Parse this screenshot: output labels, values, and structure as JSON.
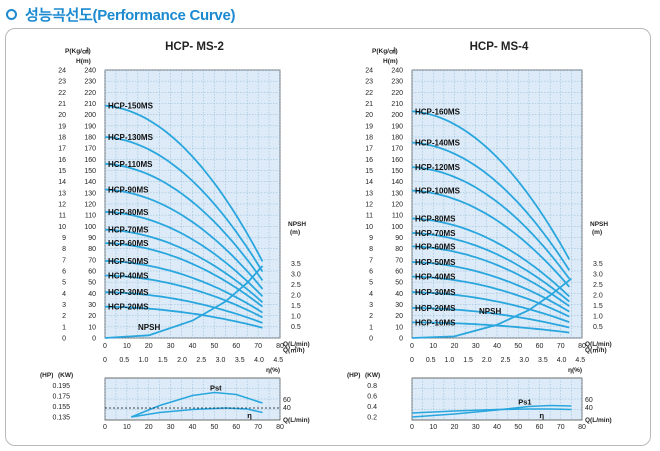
{
  "header": {
    "title": "성능곡선도(Performance Curve)"
  },
  "colors": {
    "accent": "#1b8ad0",
    "curve": "#2aa6de",
    "plot_bg": "#dcebf7",
    "grid": "#8fb6d6"
  },
  "chart_data": [
    {
      "type": "line",
      "title": "HCP-  MS-2",
      "ylabel_left": "P(Kg/㎠)",
      "ylabel_right": "H(m)",
      "x_primary_label": "Q(L/min)",
      "x_secondary_label": "Q(㎥/h)",
      "npsh_label": "NPSH",
      "npsh_unit": "(m)",
      "npsh_curve_label": "NPSH",
      "x_primary_lim": [
        0,
        80
      ],
      "x_primary_ticks": [
        "0",
        "10",
        "20",
        "30",
        "40",
        "50",
        "60",
        "70",
        "80"
      ],
      "x_secondary_ticks": [
        "0",
        "0.5",
        "1.0",
        "1.5",
        "2.0",
        "2.5",
        "3.0",
        "3.5",
        "4.0",
        "4.5"
      ],
      "y_lim": [
        0,
        24
      ],
      "y_ticks_P": [
        "0",
        "1",
        "2",
        "3",
        "4",
        "5",
        "6",
        "7",
        "8",
        "9",
        "10",
        "11",
        "12",
        "13",
        "14",
        "15",
        "16",
        "17",
        "18",
        "19",
        "20",
        "21",
        "22",
        "23",
        "24"
      ],
      "y_ticks_H": [
        "0",
        "10",
        "20",
        "30",
        "40",
        "50",
        "60",
        "70",
        "80",
        "90",
        "100",
        "110",
        "120",
        "130",
        "140",
        "150",
        "160",
        "170",
        "180",
        "190",
        "200",
        "210",
        "220",
        "230",
        "240"
      ],
      "npsh_ticks": [
        "0.5",
        "1.0",
        "1.5",
        "2.0",
        "2.5",
        "3.0",
        "3.5"
      ],
      "series": [
        {
          "name": "HCP-150MS",
          "shutoff": 20.8,
          "end_q": 72
        },
        {
          "name": "HCP-130MS",
          "shutoff": 18.0,
          "end_q": 72
        },
        {
          "name": "HCP-110MS",
          "shutoff": 15.6,
          "end_q": 72
        },
        {
          "name": "HCP-90MS",
          "shutoff": 13.3,
          "end_q": 72
        },
        {
          "name": "HCP-80MS",
          "shutoff": 11.3,
          "end_q": 72
        },
        {
          "name": "HCP-70MS",
          "shutoff": 9.7,
          "end_q": 72
        },
        {
          "name": "HCP-60MS",
          "shutoff": 8.5,
          "end_q": 72
        },
        {
          "name": "HCP-50MS",
          "shutoff": 6.9,
          "end_q": 72
        },
        {
          "name": "HCP-40MS",
          "shutoff": 5.6,
          "end_q": 72
        },
        {
          "name": "HCP-30MS",
          "shutoff": 4.1,
          "end_q": 72
        },
        {
          "name": "HCP-20MS",
          "shutoff": 2.8,
          "end_q": 72
        }
      ],
      "npsh_curve": {
        "x": [
          0,
          20,
          40,
          55,
          65,
          72
        ],
        "y": [
          0,
          0.2,
          0.9,
          1.8,
          2.7,
          3.5
        ]
      },
      "power": {
        "hp_label": "(HP)",
        "kw_label": "(KW)",
        "eff_label": "η(%)",
        "eff_ticks": [
          "40",
          "60"
        ],
        "hp_ticks": [
          "0.195",
          "0.175",
          "0.155",
          "0.135"
        ],
        "q_label": "Q(L/min)",
        "pst_label": "Pst",
        "eta_label": "η",
        "x_ticks": [
          "0",
          "10",
          "20",
          "30",
          "40",
          "50",
          "60",
          "70",
          "80"
        ],
        "pst": {
          "x": [
            12,
            25,
            40,
            50,
            60,
            72
          ],
          "y": [
            0.137,
            0.16,
            0.18,
            0.186,
            0.182,
            0.165
          ]
        },
        "eta": {
          "x": [
            12,
            25,
            40,
            55,
            65,
            72
          ],
          "y": [
            0.137,
            0.146,
            0.152,
            0.155,
            0.153,
            0.146
          ]
        }
      }
    },
    {
      "type": "line",
      "title": "HCP-  MS-4",
      "ylabel_left": "P(Kg/㎠)",
      "ylabel_right": "H(m)",
      "x_primary_label": "Q(L/min)",
      "x_secondary_label": "Q(㎥/h)",
      "npsh_label": "NPSH",
      "npsh_unit": "(m)",
      "npsh_curve_label": "NPSH",
      "x_primary_lim": [
        0,
        80
      ],
      "x_primary_ticks": [
        "0",
        "10",
        "20",
        "30",
        "40",
        "50",
        "60",
        "70",
        "80"
      ],
      "x_secondary_ticks": [
        "0",
        "0.5",
        "1.0",
        "1.5",
        "2.0",
        "2.5",
        "3.0",
        "3.5",
        "4.0",
        "4.5"
      ],
      "y_lim": [
        0,
        24
      ],
      "y_ticks_P": [
        "0",
        "1",
        "2",
        "3",
        "4",
        "5",
        "6",
        "7",
        "8",
        "9",
        "10",
        "11",
        "12",
        "13",
        "14",
        "15",
        "16",
        "17",
        "18",
        "19",
        "20",
        "21",
        "22",
        "23",
        "24"
      ],
      "y_ticks_H": [
        "0",
        "10",
        "20",
        "30",
        "40",
        "50",
        "60",
        "70",
        "80",
        "90",
        "100",
        "110",
        "120",
        "130",
        "140",
        "150",
        "160",
        "170",
        "180",
        "190",
        "200",
        "210",
        "220",
        "230",
        "240"
      ],
      "npsh_ticks": [
        "0.5",
        "1.0",
        "1.5",
        "2.0",
        "2.5",
        "3.0",
        "3.5"
      ],
      "series": [
        {
          "name": "HCP-160MS",
          "shutoff": 20.3,
          "end_q": 75
        },
        {
          "name": "HCP-140MS",
          "shutoff": 17.5,
          "end_q": 75
        },
        {
          "name": "HCP-120MS",
          "shutoff": 15.3,
          "end_q": 75
        },
        {
          "name": "HCP-100MS",
          "shutoff": 13.2,
          "end_q": 75
        },
        {
          "name": "HCP-80MS",
          "shutoff": 10.7,
          "end_q": 75
        },
        {
          "name": "HCP-70MS",
          "shutoff": 9.4,
          "end_q": 75
        },
        {
          "name": "HCP-60MS",
          "shutoff": 8.2,
          "end_q": 75
        },
        {
          "name": "HCP-50MS",
          "shutoff": 6.8,
          "end_q": 75
        },
        {
          "name": "HCP-40MS",
          "shutoff": 5.5,
          "end_q": 75
        },
        {
          "name": "HCP-30MS",
          "shutoff": 4.1,
          "end_q": 75
        },
        {
          "name": "HCP-20MS",
          "shutoff": 2.7,
          "end_q": 75
        },
        {
          "name": "HCP-10MS",
          "shutoff": 1.4,
          "end_q": 75
        }
      ],
      "npsh_curve": {
        "x": [
          0,
          20,
          40,
          55,
          65,
          75
        ],
        "y": [
          0,
          0.15,
          0.7,
          1.4,
          2.1,
          2.9
        ]
      },
      "power": {
        "hp_label": "(HP)",
        "kw_label": "(KW)",
        "eff_label": "η(%)",
        "eff_ticks": [
          "40",
          "60"
        ],
        "hp_ticks": [
          "0.8",
          "0.6",
          "0.4",
          "0.2"
        ],
        "q_label": "Q(L/min)",
        "pst_label": "Ps1",
        "eta_label": "η",
        "x_ticks": [
          "0",
          "10",
          "20",
          "30",
          "40",
          "50",
          "60",
          "70",
          "80"
        ],
        "pst": {
          "x": [
            0,
            20,
            40,
            55,
            65,
            75
          ],
          "y": [
            0.22,
            0.28,
            0.36,
            0.43,
            0.45,
            0.44
          ]
        },
        "eta": {
          "x": [
            0,
            20,
            40,
            55,
            65,
            75
          ],
          "y": [
            0.3,
            0.34,
            0.37,
            0.38,
            0.38,
            0.37
          ]
        }
      }
    }
  ]
}
